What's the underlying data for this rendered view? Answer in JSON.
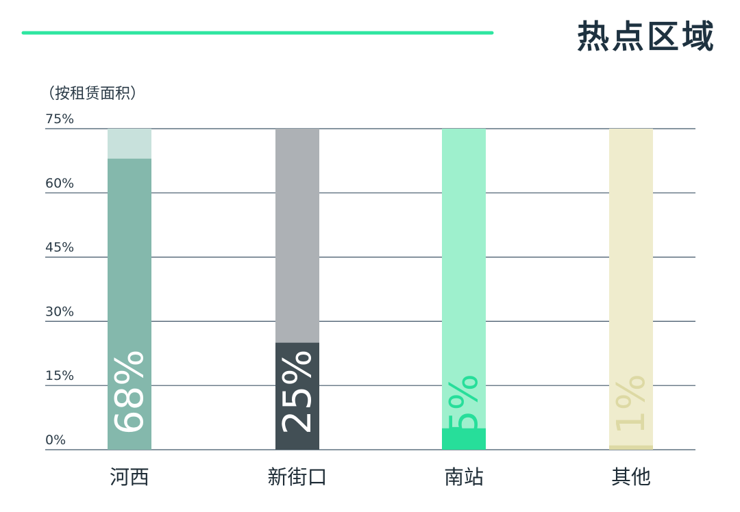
{
  "title": "热点区域",
  "unit_note": "（按租赁面积）",
  "colors": {
    "accent_line": "#2ee6a0",
    "title": "#1e3240",
    "axis_text": "#2a3a46",
    "gridline": "#3f5466",
    "category_text": "#1e2c36"
  },
  "chart_data": {
    "type": "bar",
    "title": "热点区域",
    "ylabel": "（按租赁面积）",
    "xlabel": "",
    "ylim": [
      0,
      75
    ],
    "yticks": [
      0,
      15,
      30,
      45,
      60,
      75
    ],
    "ytick_labels": [
      "0%",
      "15%",
      "30%",
      "45%",
      "60%",
      "75%"
    ],
    "grid": true,
    "categories": [
      "河西",
      "新街口",
      "南站",
      "其他"
    ],
    "values": [
      68,
      25,
      5,
      1
    ],
    "data_labels": [
      "68%",
      "25%",
      "5%",
      "1%"
    ],
    "fill_colors": [
      "#84b8ac",
      "#424f55",
      "#27de9a",
      "#ddd9a4"
    ],
    "track_colors": [
      "#c8e1dc",
      "#adb1b5",
      "#9ef0cd",
      "#efeccd"
    ],
    "label_colors": [
      "#ffffff",
      "#ffffff",
      "#27de9a",
      "#ddd9a4"
    ]
  }
}
